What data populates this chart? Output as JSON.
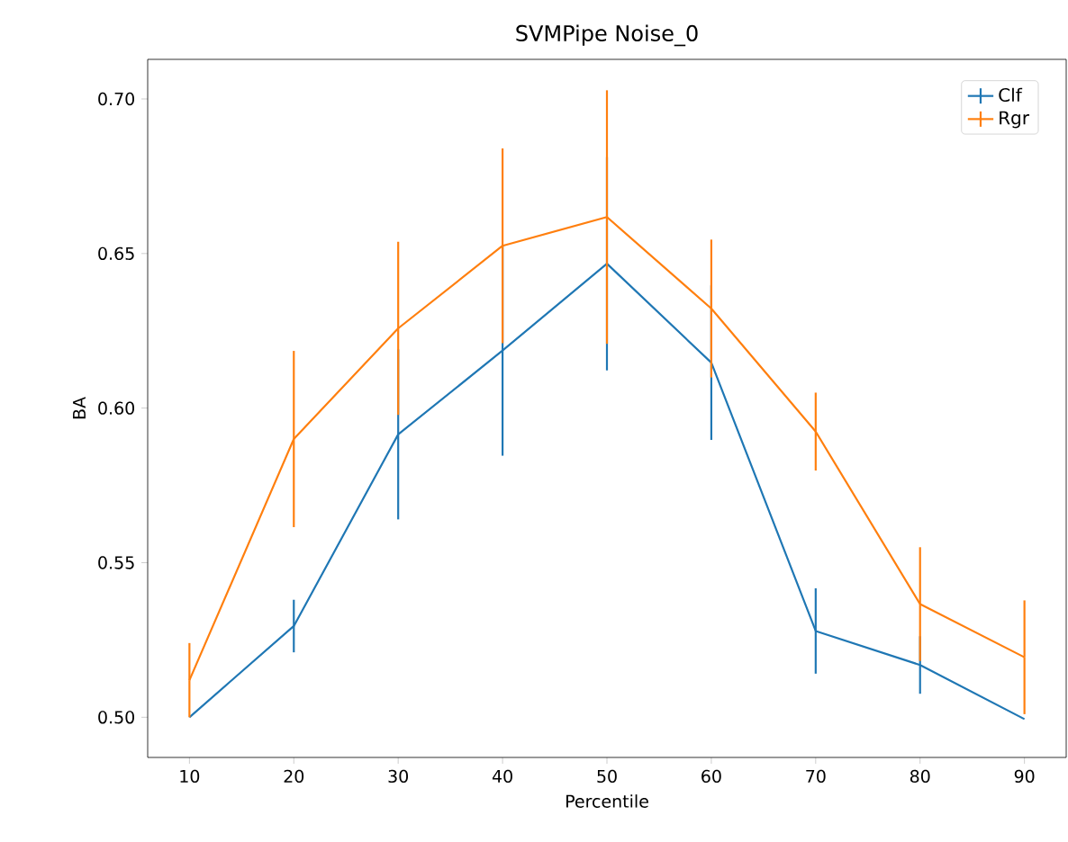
{
  "chart_data": {
    "type": "line",
    "title": "SVMPipe Noise_0",
    "xlabel": "Percentile",
    "ylabel": "BA",
    "x": [
      10,
      20,
      30,
      40,
      50,
      60,
      70,
      80,
      90
    ],
    "series": [
      {
        "name": "Clf",
        "color": "#1f77b4",
        "values": [
          0.5,
          0.5295,
          0.5915,
          0.6186,
          0.6467,
          0.6147,
          0.5279,
          0.5169,
          0.4994
        ],
        "errors": [
          null,
          0.0085,
          0.0275,
          0.034,
          0.0345,
          0.025,
          0.0138,
          0.0093,
          null
        ]
      },
      {
        "name": "Rgr",
        "color": "#ff7f0e",
        "values": [
          0.512,
          0.59,
          0.6258,
          0.6525,
          0.6618,
          0.6322,
          0.5924,
          0.5366,
          0.5194
        ],
        "errors": [
          0.012,
          0.0285,
          0.028,
          0.0315,
          0.041,
          0.0223,
          0.0126,
          0.0184,
          0.0184
        ]
      }
    ],
    "xlim": [
      6,
      94
    ],
    "ylim": [
      0.487,
      0.7128
    ],
    "xticks": [
      10,
      20,
      30,
      40,
      50,
      60,
      70,
      80,
      90
    ],
    "yticks": [
      {
        "value": 0.5,
        "label": "0.50"
      },
      {
        "value": 0.55,
        "label": "0.55"
      },
      {
        "value": 0.6,
        "label": "0.60"
      },
      {
        "value": 0.65,
        "label": "0.65"
      },
      {
        "value": 0.7,
        "label": "0.70"
      }
    ],
    "legend": "top right",
    "grid": false,
    "marker": "none",
    "line_style": "solid"
  }
}
